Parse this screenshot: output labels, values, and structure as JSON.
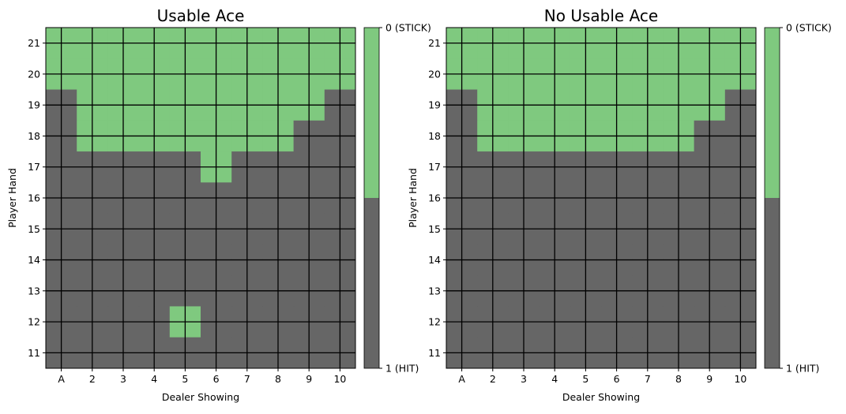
{
  "chart_data": [
    {
      "type": "heatmap",
      "title": "Usable Ace",
      "xlabel": "Dealer Showing",
      "ylabel": "Player Hand",
      "x_categories": [
        "A",
        "2",
        "3",
        "4",
        "5",
        "6",
        "7",
        "8",
        "9",
        "10"
      ],
      "y_categories": [
        "21",
        "20",
        "19",
        "18",
        "17",
        "16",
        "15",
        "14",
        "13",
        "12",
        "11"
      ],
      "values": [
        [
          0,
          0,
          0,
          0,
          0,
          0,
          0,
          0,
          0,
          0
        ],
        [
          0,
          0,
          0,
          0,
          0,
          0,
          0,
          0,
          0,
          0
        ],
        [
          1,
          0,
          0,
          0,
          0,
          0,
          0,
          0,
          0,
          1
        ],
        [
          1,
          0,
          0,
          0,
          0,
          0,
          0,
          0,
          1,
          1
        ],
        [
          1,
          1,
          1,
          1,
          1,
          0,
          1,
          1,
          1,
          1
        ],
        [
          1,
          1,
          1,
          1,
          1,
          1,
          1,
          1,
          1,
          1
        ],
        [
          1,
          1,
          1,
          1,
          1,
          1,
          1,
          1,
          1,
          1
        ],
        [
          1,
          1,
          1,
          1,
          1,
          1,
          1,
          1,
          1,
          1
        ],
        [
          1,
          1,
          1,
          1,
          1,
          1,
          1,
          1,
          1,
          1
        ],
        [
          1,
          1,
          1,
          1,
          0,
          1,
          1,
          1,
          1,
          1
        ],
        [
          1,
          1,
          1,
          1,
          1,
          1,
          1,
          1,
          1,
          1
        ]
      ],
      "colorbar": {
        "ticks": [
          {
            "value": 0,
            "label": "0 (STICK)"
          },
          {
            "value": 1,
            "label": "1 (HIT)"
          }
        ]
      }
    },
    {
      "type": "heatmap",
      "title": "No Usable Ace",
      "xlabel": "Dealer Showing",
      "ylabel": "Player Hand",
      "x_categories": [
        "A",
        "2",
        "3",
        "4",
        "5",
        "6",
        "7",
        "8",
        "9",
        "10"
      ],
      "y_categories": [
        "21",
        "20",
        "19",
        "18",
        "17",
        "16",
        "15",
        "14",
        "13",
        "12",
        "11"
      ],
      "values": [
        [
          0,
          0,
          0,
          0,
          0,
          0,
          0,
          0,
          0,
          0
        ],
        [
          0,
          0,
          0,
          0,
          0,
          0,
          0,
          0,
          0,
          0
        ],
        [
          1,
          0,
          0,
          0,
          0,
          0,
          0,
          0,
          0,
          1
        ],
        [
          1,
          0,
          0,
          0,
          0,
          0,
          0,
          0,
          1,
          1
        ],
        [
          1,
          1,
          1,
          1,
          1,
          1,
          1,
          1,
          1,
          1
        ],
        [
          1,
          1,
          1,
          1,
          1,
          1,
          1,
          1,
          1,
          1
        ],
        [
          1,
          1,
          1,
          1,
          1,
          1,
          1,
          1,
          1,
          1
        ],
        [
          1,
          1,
          1,
          1,
          1,
          1,
          1,
          1,
          1,
          1
        ],
        [
          1,
          1,
          1,
          1,
          1,
          1,
          1,
          1,
          1,
          1
        ],
        [
          1,
          1,
          1,
          1,
          1,
          1,
          1,
          1,
          1,
          1
        ],
        [
          1,
          1,
          1,
          1,
          1,
          1,
          1,
          1,
          1,
          1
        ]
      ],
      "colorbar": {
        "ticks": [
          {
            "value": 0,
            "label": "0 (STICK)"
          },
          {
            "value": 1,
            "label": "1 (HIT)"
          }
        ]
      }
    }
  ],
  "colors": {
    "stick": "#7fc97f",
    "hit": "#666666",
    "grid": "#000000"
  }
}
